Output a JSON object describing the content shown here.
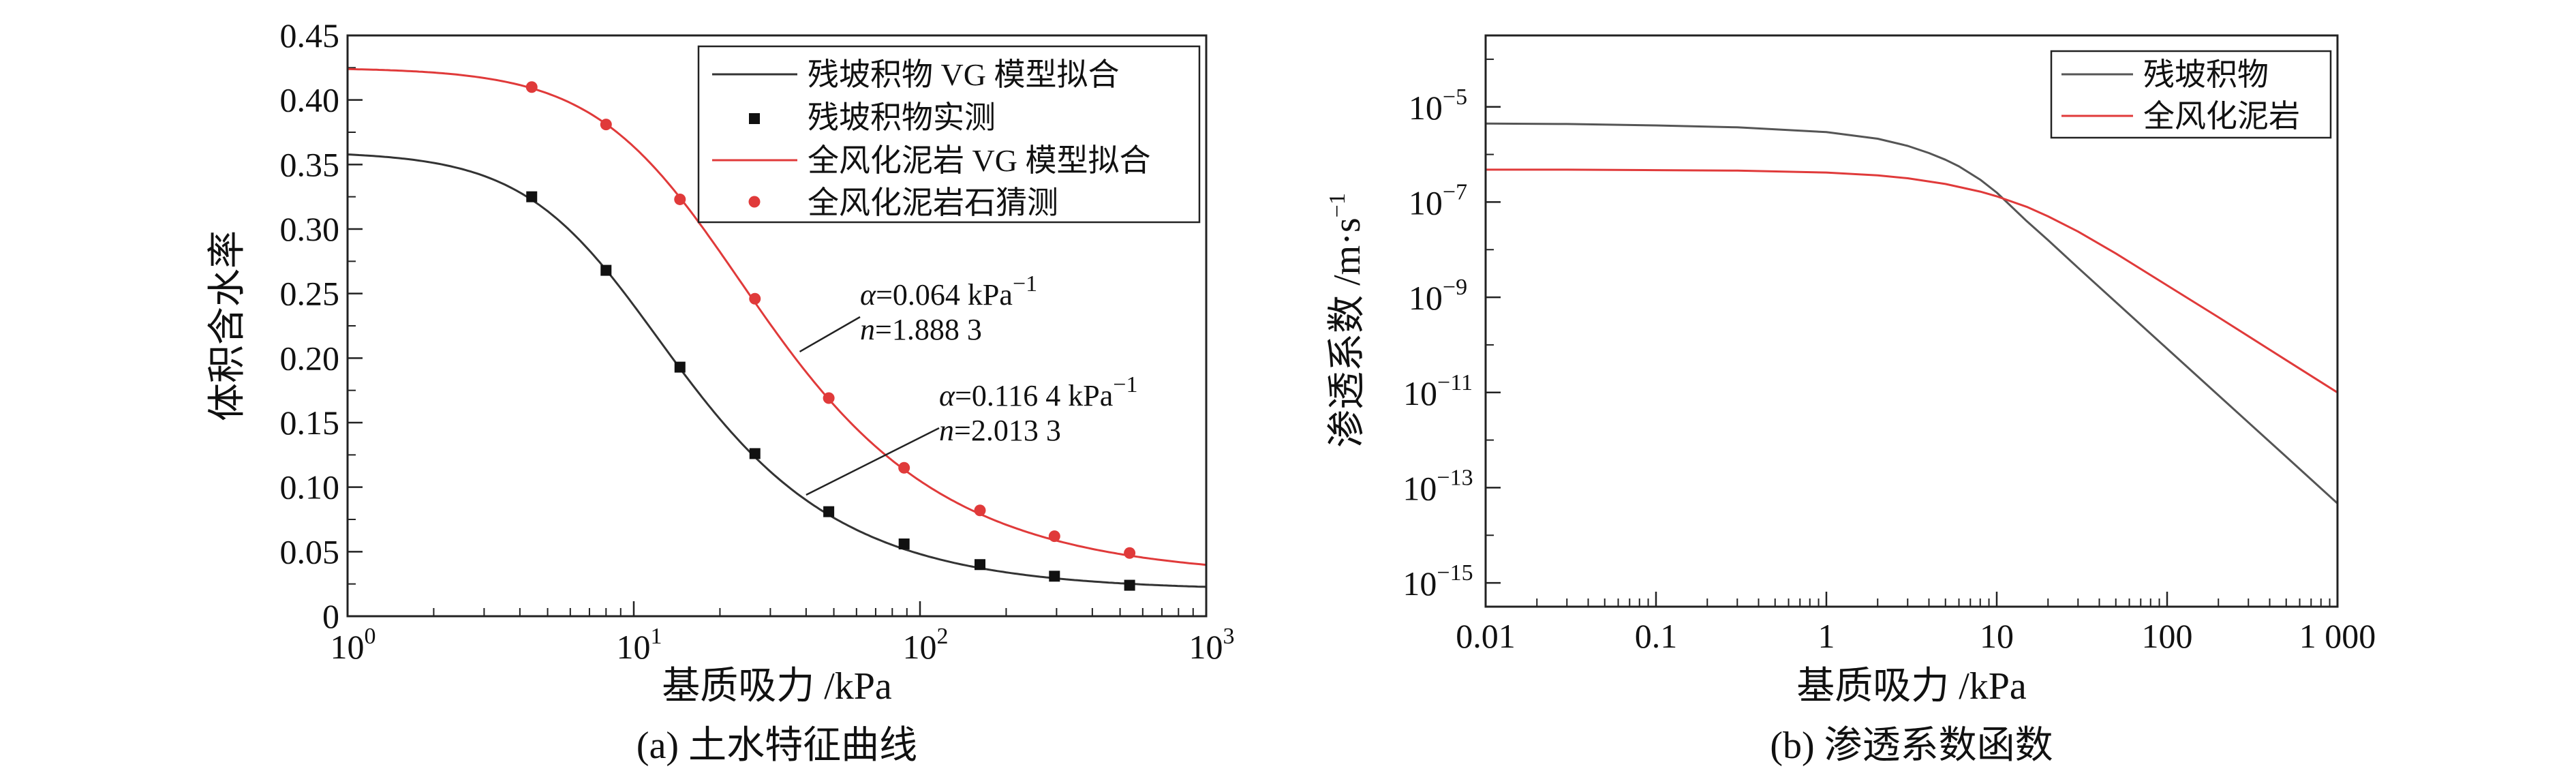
{
  "chart_data": [
    {
      "type": "line",
      "id": "a",
      "caption": "(a) 土水特征曲线",
      "xlabel": "基质吸力 /kPa",
      "ylabel": "体积含水率",
      "xscale": "log",
      "xlim": [
        1,
        1000
      ],
      "ylim": [
        0,
        0.45
      ],
      "x_ticks": [
        {
          "value": 1,
          "base": "10",
          "exp": "0"
        },
        {
          "value": 10,
          "base": "10",
          "exp": "1"
        },
        {
          "value": 100,
          "base": "10",
          "exp": "2"
        },
        {
          "value": 1000,
          "base": "10",
          "exp": "3"
        }
      ],
      "y_ticks": [
        "0",
        "0.05",
        "0.10",
        "0.15",
        "0.20",
        "0.25",
        "0.30",
        "0.35",
        "0.40",
        "0.45"
      ],
      "legend": [
        {
          "label": "残坡积物 VG 模型拟合",
          "kind": "line",
          "color": "#333333"
        },
        {
          "label": "残坡积物实测",
          "kind": "square",
          "color": "#111111"
        },
        {
          "label": "全风化泥岩 VG 模型拟合",
          "kind": "line",
          "color": "#e03a3a"
        },
        {
          "label": "全风化泥岩石猜测",
          "kind": "circle",
          "color": "#e03a3a"
        }
      ],
      "series": [
        {
          "name": "残坡积物 VG 模型拟合",
          "color": "#333333",
          "model": {
            "theta_r": 0.02,
            "theta_s": 0.36,
            "alpha": 0.1164,
            "n": 2.0133
          }
        },
        {
          "name": "全风化泥岩 VG 模型拟合",
          "color": "#e03a3a",
          "model": {
            "theta_r": 0.03,
            "theta_s": 0.425,
            "alpha": 0.064,
            "n": 1.8883
          }
        }
      ],
      "points": [
        {
          "name": "残坡积物实测",
          "color": "#111111",
          "marker": "square",
          "x": [
            4.4,
            8,
            14.5,
            26.5,
            48,
            88,
            162,
            295,
            540
          ],
          "y": [
            0.325,
            0.268,
            0.193,
            0.126,
            0.081,
            0.056,
            0.04,
            0.031,
            0.024
          ]
        },
        {
          "name": "全风化泥岩石猜测",
          "color": "#e03a3a",
          "marker": "circle",
          "x": [
            4.4,
            8,
            14.5,
            26.5,
            48,
            88,
            162,
            295,
            540
          ],
          "y": [
            0.41,
            0.381,
            0.323,
            0.246,
            0.169,
            0.115,
            0.082,
            0.062,
            0.049
          ]
        }
      ],
      "annotations": [
        {
          "alpha_prefix": "α",
          "alpha_value": "=0.064 kPa",
          "alpha_exp": "−1",
          "n_prefix": "n",
          "n_value": "=1.888 3",
          "arrow_to_x": 38,
          "arrow_to_y": 0.205
        },
        {
          "alpha_prefix": "α",
          "alpha_value": "=0.116 4 kPa",
          "alpha_exp": "−1",
          "n_prefix": "n",
          "n_value": "=2.013 3",
          "arrow_to_x": 40,
          "arrow_to_y": 0.094
        }
      ]
    },
    {
      "type": "line",
      "id": "b",
      "caption": "(b) 渗透系数函数",
      "xlabel": "基质吸力 /kPa",
      "ylabel_main": "渗透系数 /m·s",
      "ylabel_exp": "−1",
      "xscale": "log",
      "yscale": "log",
      "xlim": [
        0.01,
        1000
      ],
      "ylim_log10": [
        -15.5,
        -3.5
      ],
      "x_ticks": [
        {
          "value": 0.01,
          "label": "0.01"
        },
        {
          "value": 0.1,
          "label": "0.1"
        },
        {
          "value": 1,
          "label": "1"
        },
        {
          "value": 10,
          "label": "10"
        },
        {
          "value": 100,
          "label": "100"
        },
        {
          "value": 1000,
          "label": "1 000"
        }
      ],
      "y_ticks": [
        {
          "log10": -5,
          "base": "10",
          "exp": "−5"
        },
        {
          "log10": -7,
          "base": "10",
          "exp": "−7"
        },
        {
          "log10": -9,
          "base": "10",
          "exp": "−9"
        },
        {
          "log10": -11,
          "base": "10",
          "exp": "−11"
        },
        {
          "log10": -13,
          "base": "10",
          "exp": "−13"
        },
        {
          "log10": -15,
          "base": "10",
          "exp": "−15"
        }
      ],
      "legend": [
        {
          "label": "残坡积物",
          "color": "#555555"
        },
        {
          "label": "全风化泥岩",
          "color": "#e03a3a"
        }
      ],
      "series": [
        {
          "name": "残坡积物",
          "color": "#555555",
          "x": [
            0.01,
            0.03,
            0.1,
            0.3,
            1,
            2,
            3,
            4,
            5,
            6,
            8,
            10,
            15,
            20,
            30,
            50,
            100,
            200,
            500,
            1000
          ],
          "log10_y": [
            -5.35,
            -5.36,
            -5.39,
            -5.43,
            -5.53,
            -5.67,
            -5.82,
            -5.97,
            -6.11,
            -6.25,
            -6.53,
            -6.8,
            -7.4,
            -7.8,
            -8.38,
            -9.1,
            -10.08,
            -11.06,
            -12.35,
            -13.33
          ]
        },
        {
          "name": "全风化泥岩",
          "color": "#e03a3a",
          "x": [
            0.01,
            0.03,
            0.1,
            0.3,
            1,
            2,
            3,
            5,
            8,
            10,
            15,
            20,
            30,
            50,
            100,
            200,
            500,
            1000
          ],
          "log10_y": [
            -6.32,
            -6.32,
            -6.33,
            -6.34,
            -6.38,
            -6.44,
            -6.5,
            -6.62,
            -6.78,
            -6.88,
            -7.1,
            -7.3,
            -7.62,
            -8.08,
            -8.75,
            -9.42,
            -10.32,
            -11.0
          ]
        }
      ]
    }
  ]
}
